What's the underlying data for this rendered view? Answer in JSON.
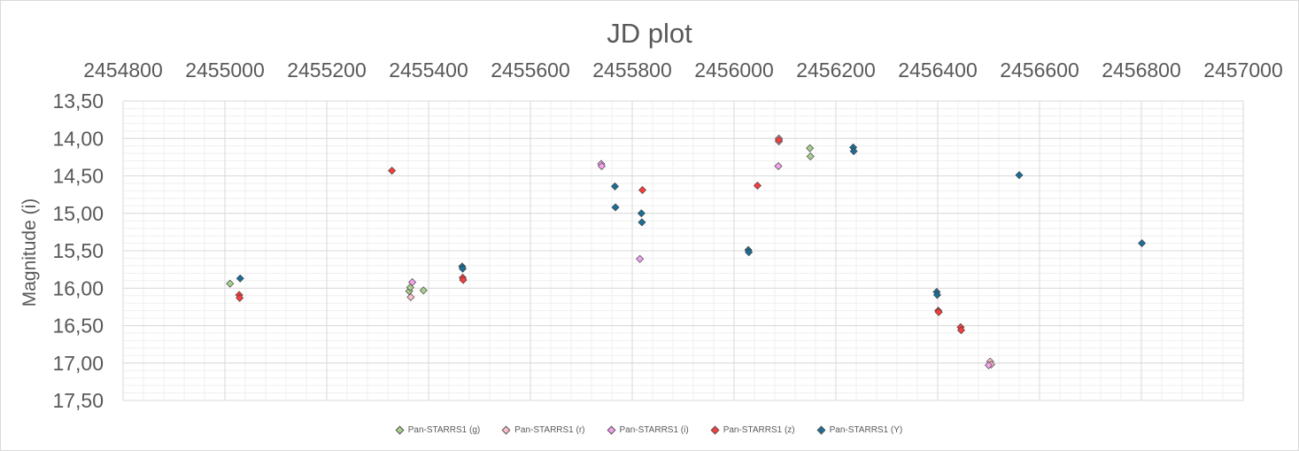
{
  "chart_data": {
    "type": "scatter",
    "title": "JD plot",
    "xlabel": "",
    "ylabel": "Magnitude (i)",
    "xlim": [
      2454800,
      2457000
    ],
    "ylim": [
      13.5,
      17.5
    ],
    "y_reversed": true,
    "x_axis_position": "top",
    "x_ticks": [
      "2454800",
      "2455000",
      "2455200",
      "2455400",
      "2455600",
      "2455800",
      "2456000",
      "2456200",
      "2456400",
      "2456600",
      "2456800",
      "2457000"
    ],
    "y_ticks": [
      "13,50",
      "14,00",
      "14,50",
      "15,00",
      "15,50",
      "16,00",
      "16,50",
      "17,00",
      "17,50"
    ],
    "grid": true,
    "legend_position": "bottom",
    "series": [
      {
        "name": "Pan-STARRS1 (g)",
        "color": "#a9d18e",
        "points": [
          [
            2455010,
            15.94
          ],
          [
            2455362,
            16.04
          ],
          [
            2455364,
            15.99
          ],
          [
            2455390,
            16.03
          ],
          [
            2456149,
            14.13
          ],
          [
            2456150,
            14.24
          ]
        ]
      },
      {
        "name": "Pan-STARRS1 (r)",
        "color": "#ffc0cb",
        "points": [
          [
            2455365,
            16.12
          ],
          [
            2456088,
            14.0
          ],
          [
            2456088,
            14.04
          ],
          [
            2456503,
            16.98
          ],
          [
            2456505,
            17.02
          ]
        ]
      },
      {
        "name": "Pan-STARRS1 (i)",
        "color": "#f5a3f0",
        "points": [
          [
            2455368,
            15.92
          ],
          [
            2455739,
            14.34
          ],
          [
            2455740,
            14.37
          ],
          [
            2455815,
            15.61
          ],
          [
            2456087,
            14.37
          ],
          [
            2456500,
            17.03
          ]
        ]
      },
      {
        "name": "Pan-STARRS1 (z)",
        "color": "#ff3b3b",
        "points": [
          [
            2455028,
            16.09
          ],
          [
            2455029,
            16.13
          ],
          [
            2455328,
            14.43
          ],
          [
            2455467,
            15.86
          ],
          [
            2455468,
            15.89
          ],
          [
            2455820,
            14.69
          ],
          [
            2456046,
            14.63
          ],
          [
            2456088,
            14.02
          ],
          [
            2456401,
            16.3
          ],
          [
            2456402,
            16.32
          ],
          [
            2456445,
            16.52
          ],
          [
            2456446,
            16.56
          ]
        ]
      },
      {
        "name": "Pan-STARRS1 (Y)",
        "color": "#1a6f9a",
        "points": [
          [
            2455030,
            15.87
          ],
          [
            2455466,
            15.71
          ],
          [
            2455467,
            15.74
          ],
          [
            2455766,
            14.64
          ],
          [
            2455767,
            14.92
          ],
          [
            2455818,
            15.0
          ],
          [
            2455819,
            15.12
          ],
          [
            2456028,
            15.49
          ],
          [
            2456029,
            15.52
          ],
          [
            2456234,
            14.12
          ],
          [
            2456235,
            14.17
          ],
          [
            2456398,
            16.05
          ],
          [
            2456399,
            16.09
          ],
          [
            2456560,
            14.49
          ],
          [
            2456801,
            15.4
          ]
        ]
      }
    ]
  }
}
